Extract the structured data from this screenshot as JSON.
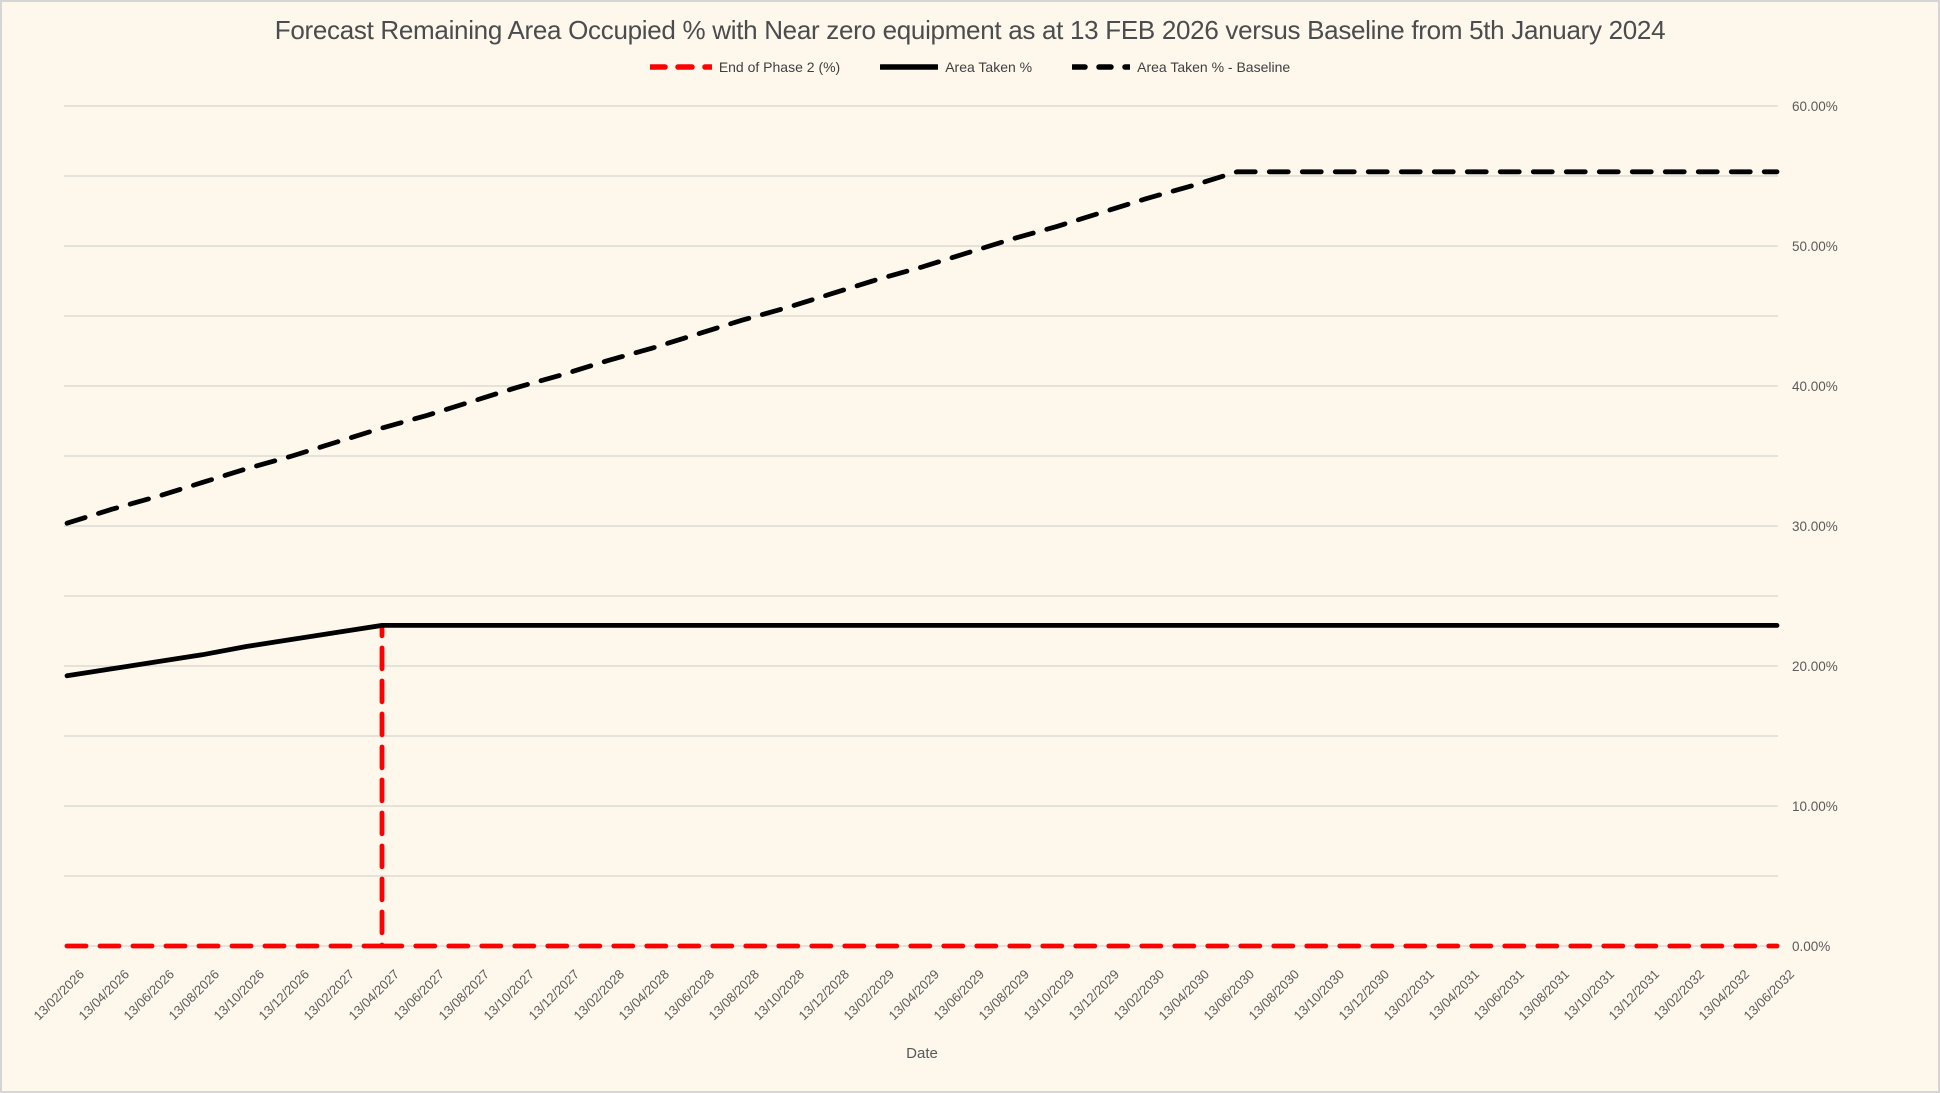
{
  "title": "Forecast Remaining Area Occupied % with Near zero equipment as at 13 FEB 2026 versus Baseline from 5th January 2024",
  "colors": {
    "background": "#FDF8EB",
    "border": "#D5D5D5",
    "gridline": "#D7D5CE",
    "axis_text": "#5B5B5B",
    "title_text": "#4A4C4E",
    "phase2_red": "#FF0000",
    "series_black": "#000000"
  },
  "chart_data": {
    "type": "line",
    "title": "Forecast Remaining Area Occupied % with Near zero equipment as at 13 FEB 2026 versus Baseline from 5th January 2024",
    "xlabel": "Date",
    "ylabel": "",
    "ylim": [
      0,
      60
    ],
    "y_grid_step": 5,
    "y_label_step": 10,
    "y_ticklabels": [
      "0.00%",
      "10.00%",
      "20.00%",
      "30.00%",
      "40.00%",
      "50.00%",
      "60.00%"
    ],
    "grid": true,
    "legend_position": "top-center",
    "x_tick_interval": "2 months",
    "categories": [
      "13/02/2026",
      "13/04/2026",
      "13/06/2026",
      "13/08/2026",
      "13/10/2026",
      "13/12/2026",
      "13/02/2027",
      "13/04/2027",
      "13/06/2027",
      "13/08/2027",
      "13/10/2027",
      "13/12/2027",
      "13/02/2028",
      "13/04/2028",
      "13/06/2028",
      "13/08/2028",
      "13/10/2028",
      "13/12/2028",
      "13/02/2029",
      "13/04/2029",
      "13/06/2029",
      "13/08/2029",
      "13/10/2029",
      "13/12/2029",
      "13/02/2030",
      "13/04/2030",
      "13/06/2030",
      "13/08/2030",
      "13/10/2030",
      "13/12/2030",
      "13/02/2031",
      "13/04/2031",
      "13/06/2031",
      "13/08/2031",
      "13/10/2031",
      "13/12/2031",
      "13/02/2032",
      "13/04/2032",
      "13/06/2032"
    ],
    "series": [
      {
        "name": "End of Phase 2 (%)",
        "color": "#FF0000",
        "line_style": "dashed",
        "values": [
          0,
          0,
          0,
          0,
          0,
          0,
          0,
          0,
          0,
          0,
          0,
          0,
          0,
          0,
          0,
          0,
          0,
          0,
          0,
          0,
          0,
          0,
          0,
          0,
          0,
          0,
          0,
          0,
          0,
          0,
          0,
          0,
          0,
          0,
          0,
          0,
          0,
          0,
          0
        ],
        "spike": {
          "category": "13/04/2027",
          "index": 7,
          "value": 22.9
        }
      },
      {
        "name": "Area Taken %",
        "color": "#000000",
        "line_style": "solid",
        "values": [
          19.3,
          19.8,
          20.3,
          20.8,
          21.4,
          21.9,
          22.4,
          22.9,
          22.9,
          22.9,
          22.9,
          22.9,
          22.9,
          22.9,
          22.9,
          22.9,
          22.9,
          22.9,
          22.9,
          22.9,
          22.9,
          22.9,
          22.9,
          22.9,
          22.9,
          22.9,
          22.9,
          22.9,
          22.9,
          22.9,
          22.9,
          22.9,
          22.9,
          22.9,
          22.9,
          22.9,
          22.9,
          22.9,
          22.9
        ]
      },
      {
        "name": "Area Taken % - Baseline",
        "color": "#000000",
        "line_style": "dashed",
        "values": [
          30.2,
          31.2,
          32.1,
          33.1,
          34.1,
          35.0,
          36.0,
          37.0,
          37.9,
          38.9,
          39.9,
          40.8,
          41.8,
          42.7,
          43.7,
          44.7,
          45.6,
          46.6,
          47.6,
          48.5,
          49.5,
          50.5,
          51.4,
          52.4,
          53.4,
          54.3,
          55.3,
          55.3,
          55.3,
          55.3,
          55.3,
          55.3,
          55.3,
          55.3,
          55.3,
          55.3,
          55.3,
          55.3,
          55.3
        ]
      }
    ]
  }
}
